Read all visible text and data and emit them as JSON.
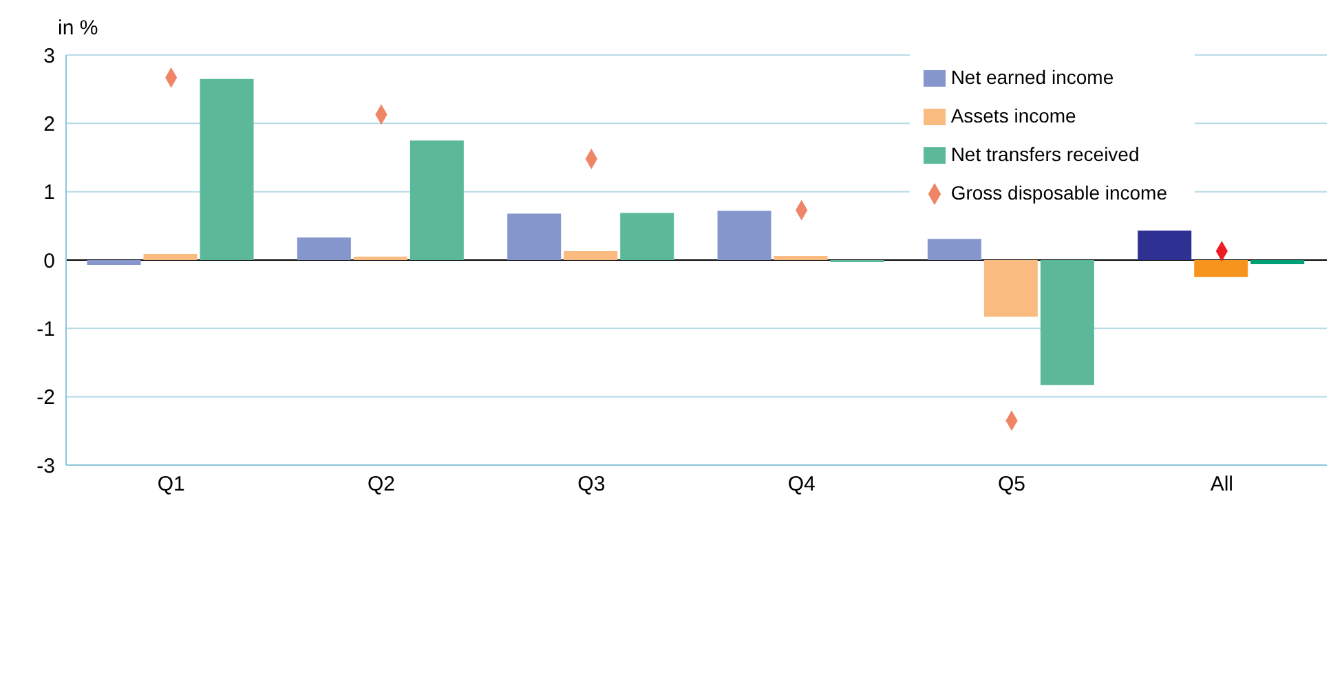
{
  "chart_data": {
    "type": "bar",
    "ylabel": "in %",
    "categories": [
      "Q1",
      "Q2",
      "Q3",
      "Q4",
      "Q5",
      "All"
    ],
    "series": [
      {
        "name": "Net earned income",
        "color": "#8496cc",
        "colors": [
          "#8496cc",
          "#8496cc",
          "#8496cc",
          "#8496cc",
          "#8496cc",
          "#2e3192"
        ],
        "values": [
          -0.07,
          0.33,
          0.68,
          0.72,
          0.31,
          0.43
        ]
      },
      {
        "name": "Assets income",
        "color": "#f9bb80",
        "colors": [
          "#f9bb80",
          "#f9bb80",
          "#f9bb80",
          "#f9bb80",
          "#f9bb80",
          "#f7941d"
        ],
        "values": [
          0.09,
          0.05,
          0.13,
          0.06,
          -0.83,
          -0.25
        ]
      },
      {
        "name": "Net transfers received",
        "color": "#5bb99a",
        "colors": [
          "#5bb99a",
          "#5bb99a",
          "#5bb99a",
          "#5bb99a",
          "#5bb99a",
          "#00a074"
        ],
        "values": [
          2.65,
          1.75,
          0.69,
          -0.03,
          -1.83,
          -0.06
        ]
      },
      {
        "name": "Gross disposable income",
        "type": "scatter",
        "marker": "diamond",
        "color": "#f08466",
        "colors": [
          "#f08466",
          "#f08466",
          "#f08466",
          "#f08466",
          "#f08466",
          "#ed1c24"
        ],
        "values": [
          2.67,
          2.13,
          1.48,
          0.73,
          -2.35,
          0.13
        ]
      }
    ],
    "ylim": [
      -3,
      3
    ],
    "yticks": [
      -3,
      -2,
      -1,
      0,
      1,
      2,
      3
    ],
    "grid": "y",
    "legend": "top right",
    "ref_lines": [
      {
        "axis": "y",
        "value": 0,
        "color": "#000000"
      }
    ]
  }
}
